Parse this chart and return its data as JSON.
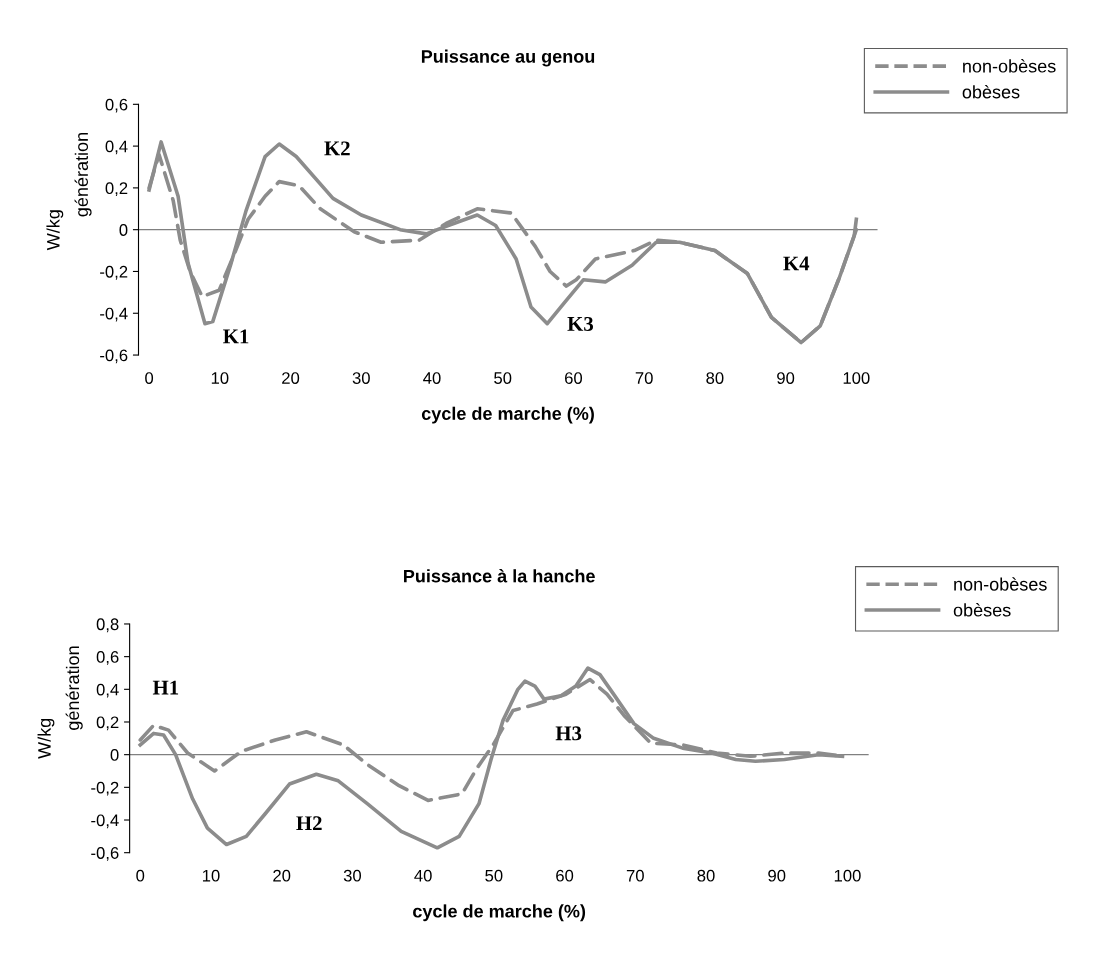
{
  "chart_data": [
    {
      "type": "line",
      "title": "Puissance au genou",
      "xlabel": "cycle de marche (%)",
      "ylabel": "W/kg",
      "xlim": [
        -1.5,
        103
      ],
      "xticks": [
        0,
        10,
        20,
        30,
        40,
        50,
        60,
        70,
        80,
        90,
        100
      ],
      "ylim": [
        -0.6,
        0.6
      ],
      "yticks": [
        {
          "value": -0.6,
          "label": "-0,6"
        },
        {
          "value": -0.4,
          "label": "-0,4"
        },
        {
          "value": -0.2,
          "label": "-0,2"
        },
        {
          "value": 0,
          "label": "0"
        },
        {
          "value": 0.2,
          "label": "0,2"
        },
        {
          "value": 0.4,
          "label": "0,4"
        },
        {
          "value": 0.6,
          "label": "0,6"
        }
      ],
      "grid": false,
      "legend": "top right",
      "ref_lines": [
        {
          "axis": "y",
          "value": 0,
          "color": "#808080"
        }
      ],
      "series": [
        {
          "name": "non-obèses",
          "color": "#8c8c8c",
          "line_style": "dashed",
          "x": [
            0,
            1.4,
            3.4,
            4.4,
            5.8,
            7.5,
            9.9,
            12,
            14,
            16.4,
            18.4,
            21.2,
            24.2,
            29,
            32.8,
            38.2,
            42,
            46.4,
            51.2,
            54.6,
            56.7,
            59,
            60.4,
            63.1,
            68.6,
            71.7,
            75,
            80,
            84.6,
            88,
            92.2,
            94.9,
            97.6,
            100
          ],
          "values": [
            0.2,
            0.36,
            0.14,
            -0.05,
            -0.2,
            -0.32,
            -0.29,
            -0.12,
            0.05,
            0.16,
            0.23,
            0.21,
            0.1,
            -0.01,
            -0.06,
            -0.05,
            0.03,
            0.1,
            0.08,
            -0.08,
            -0.2,
            -0.27,
            -0.24,
            -0.14,
            -0.1,
            -0.05,
            -0.06,
            -0.1,
            -0.21,
            -0.42,
            -0.54,
            -0.46,
            -0.23,
            0.0
          ]
        },
        {
          "name": "obèses",
          "color": "#8c8c8c",
          "line_style": "solid",
          "x": [
            0,
            1.7,
            4.1,
            5.5,
            7.9,
            9,
            11.6,
            13.7,
            16.4,
            18.4,
            20.8,
            26,
            30,
            35.5,
            39.2,
            42.3,
            46.4,
            49,
            51.9,
            54,
            56.3,
            58.7,
            61.4,
            64.5,
            68.3,
            71.7,
            75,
            80,
            84.6,
            88,
            92.2,
            94.9,
            97.6,
            99.7,
            100
          ],
          "values": [
            0.19,
            0.42,
            0.16,
            -0.16,
            -0.45,
            -0.44,
            -0.16,
            0.09,
            0.35,
            0.41,
            0.35,
            0.15,
            0.07,
            0.0,
            -0.02,
            0.02,
            0.07,
            0.02,
            -0.14,
            -0.37,
            -0.45,
            -0.35,
            -0.24,
            -0.25,
            -0.17,
            -0.06,
            -0.06,
            -0.1,
            -0.21,
            -0.42,
            -0.54,
            -0.46,
            -0.23,
            -0.03,
            0.05
          ]
        }
      ],
      "annotations": [
        "génération",
        "K1",
        "K2",
        "K3",
        "K4"
      ]
    },
    {
      "type": "line",
      "title": "Puissance à la hanche",
      "xlabel": "cycle de marche (%)",
      "ylabel": "W/kg",
      "xlim": [
        -1.5,
        103
      ],
      "xticks": [
        0,
        10,
        20,
        30,
        40,
        50,
        60,
        70,
        80,
        90,
        100
      ],
      "ylim": [
        -0.6,
        0.8
      ],
      "yticks": [
        {
          "value": -0.6,
          "label": "-0,6"
        },
        {
          "value": -0.4,
          "label": "-0,4"
        },
        {
          "value": -0.2,
          "label": "-0,2"
        },
        {
          "value": 0,
          "label": "0"
        },
        {
          "value": 0.2,
          "label": "0,2"
        },
        {
          "value": 0.4,
          "label": "0,4"
        },
        {
          "value": 0.6,
          "label": "0,6"
        },
        {
          "value": 0.8,
          "label": "0,8"
        }
      ],
      "grid": false,
      "legend": "top right",
      "ref_lines": [
        {
          "axis": "y",
          "value": 0,
          "color": "#808080"
        }
      ],
      "series": [
        {
          "name": "non-obèses",
          "color": "#8c8c8c",
          "line_style": "dashed",
          "x": [
            0,
            1.9,
            4,
            6.7,
            10.5,
            14.3,
            19.1,
            23.5,
            28.7,
            32.1,
            36.6,
            40.7,
            45.5,
            47.5,
            49.9,
            52.7,
            56.1,
            60.2,
            63.6,
            66,
            68.4,
            72.2,
            76.7,
            81.5,
            86.3,
            91.1,
            95.9,
            99.3
          ],
          "values": [
            0.09,
            0.18,
            0.15,
            0.01,
            -0.1,
            0.02,
            0.09,
            0.14,
            0.06,
            -0.06,
            -0.19,
            -0.28,
            -0.24,
            -0.09,
            0.06,
            0.27,
            0.31,
            0.37,
            0.46,
            0.37,
            0.24,
            0.07,
            0.06,
            0.01,
            -0.01,
            0.01,
            0.01,
            -0.01
          ]
        },
        {
          "name": "obèses",
          "color": "#8c8c8c",
          "line_style": "solid",
          "x": [
            0,
            1.9,
            3.3,
            5,
            7.4,
            9.5,
            12.2,
            15,
            17.7,
            21.1,
            24.9,
            28,
            32.1,
            36.9,
            42,
            45.1,
            47.9,
            49.6,
            51.3,
            53.4,
            54.4,
            55.8,
            57.1,
            59.5,
            61.6,
            63.3,
            65,
            67.1,
            69.8,
            72.6,
            76.7,
            80.8,
            84.2,
            87,
            91.1,
            95.9,
            99.3
          ],
          "values": [
            0.06,
            0.13,
            0.12,
            0.0,
            -0.27,
            -0.45,
            -0.55,
            -0.5,
            -0.36,
            -0.18,
            -0.12,
            -0.16,
            -0.3,
            -0.47,
            -0.57,
            -0.5,
            -0.3,
            -0.03,
            0.21,
            0.4,
            0.45,
            0.42,
            0.34,
            0.36,
            0.42,
            0.53,
            0.49,
            0.36,
            0.19,
            0.1,
            0.04,
            0.01,
            -0.03,
            -0.04,
            -0.03,
            0.0,
            -0.01
          ]
        }
      ],
      "annotations": [
        "génération",
        "H1",
        "H2",
        "H3"
      ]
    }
  ]
}
